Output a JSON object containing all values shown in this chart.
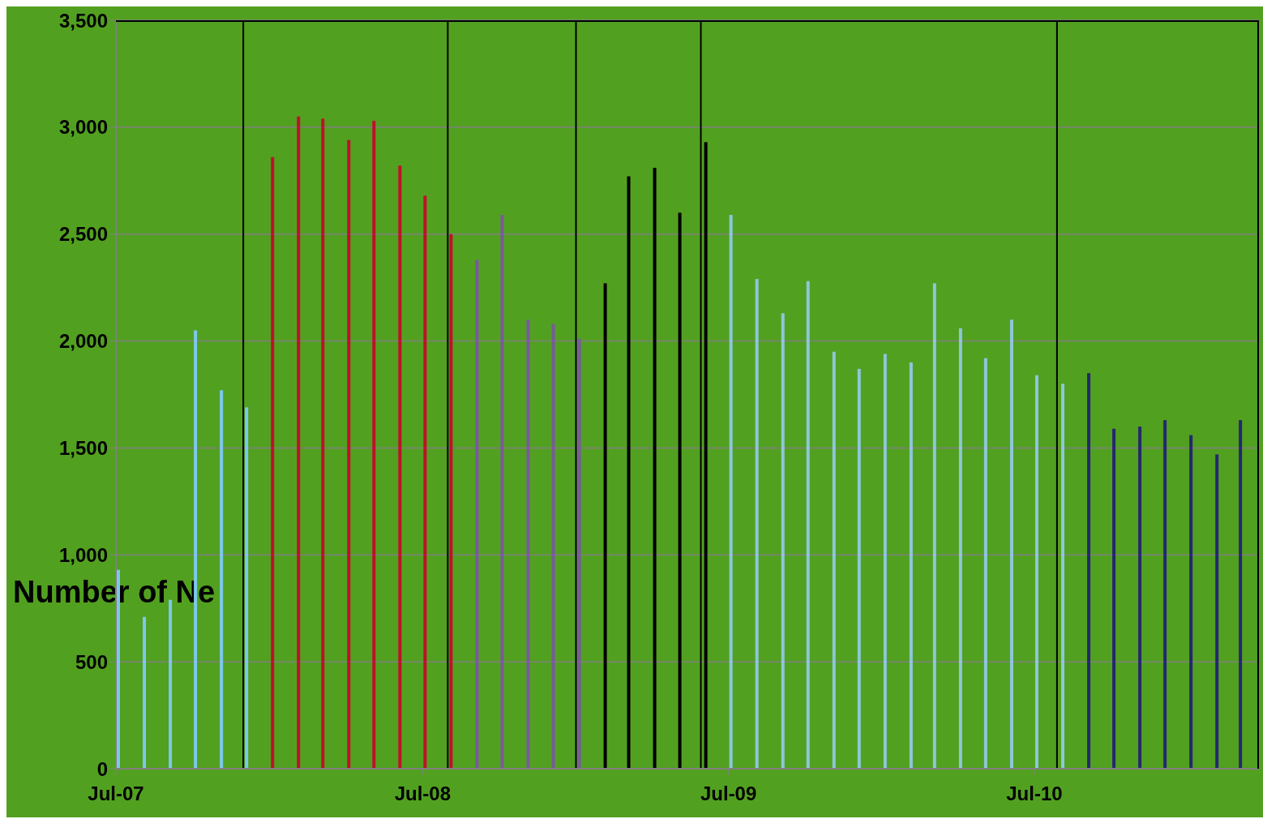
{
  "chart_data": {
    "type": "bar",
    "ylabel": "Number of Ne",
    "xlim": [
      "2007-07",
      "2011-03-26"
    ],
    "xticks": [
      {
        "value": "2007-07",
        "label": "Jul-07"
      },
      {
        "value": "2008-07",
        "label": "Jul-08"
      },
      {
        "value": "2009-07",
        "label": "Jul-09"
      },
      {
        "value": "2010-07",
        "label": "Jul-10"
      }
    ],
    "ylim": [
      0,
      3500
    ],
    "yticks": [
      0,
      500,
      {
        "value": 1000,
        "label": "1,000"
      },
      {
        "value": 1500,
        "label": "1,500"
      },
      {
        "value": 2000,
        "label": "2,000"
      },
      {
        "value": 2500,
        "label": "2,500"
      },
      {
        "value": 3000,
        "label": "3,000"
      },
      {
        "value": 3500,
        "label": "3,500"
      }
    ],
    "grid": "y",
    "series": [
      {
        "color": "#7cc8ec",
        "x": [
          "2007-07",
          "2007-08",
          "2007-09",
          "2007-10",
          "2007-11",
          "2007-12"
        ],
        "values": [
          930,
          710,
          790,
          2050,
          1770,
          1690
        ]
      },
      {
        "color": "#c0102a",
        "x": [
          "2008-01",
          "2008-02",
          "2008-03",
          "2008-04",
          "2008-05",
          "2008-06",
          "2008-07",
          "2008-08"
        ],
        "values": [
          2860,
          3050,
          3040,
          2940,
          3030,
          2820,
          2680,
          2500
        ]
      },
      {
        "color": "#7a5a9c",
        "x": [
          "2008-09",
          "2008-10",
          "2008-11",
          "2008-12",
          "2009-01"
        ],
        "values": [
          2380,
          2590,
          2100,
          2080,
          2010
        ]
      },
      {
        "color": "#000000",
        "x": [
          "2009-02",
          "2009-03",
          "2009-04",
          "2009-05",
          "2009-06"
        ],
        "values": [
          2270,
          2770,
          2810,
          2600,
          2930
        ]
      },
      {
        "color": "#8cc8d8",
        "x": [
          "2009-07",
          "2009-08",
          "2009-09",
          "2009-10",
          "2009-11",
          "2009-12",
          "2010-01",
          "2010-02",
          "2010-03",
          "2010-04",
          "2010-05",
          "2010-06",
          "2010-07",
          "2010-08"
        ],
        "values": [
          2590,
          2290,
          2130,
          2280,
          1950,
          1870,
          1940,
          1900,
          2270,
          2060,
          1920,
          2100,
          1840,
          1800
        ]
      },
      {
        "color": "#23286e",
        "x": [
          "2010-09",
          "2010-10",
          "2010-11",
          "2010-12",
          "2011-01",
          "2011-02",
          "2011-03"
        ],
        "values": [
          1850,
          1590,
          1600,
          1630,
          1560,
          1470,
          1630
        ]
      }
    ],
    "ref_lines": [
      {
        "axis": "x",
        "value": "2007-11-30",
        "color": "#000000"
      },
      {
        "axis": "x",
        "value": "2008-07-31",
        "color": "#000000"
      },
      {
        "axis": "x",
        "value": "2008-12-31",
        "color": "#000000"
      },
      {
        "axis": "x",
        "value": "2009-05-29",
        "color": "#000000"
      },
      {
        "axis": "x",
        "value": "2010-07-28",
        "color": "#000000"
      }
    ]
  }
}
